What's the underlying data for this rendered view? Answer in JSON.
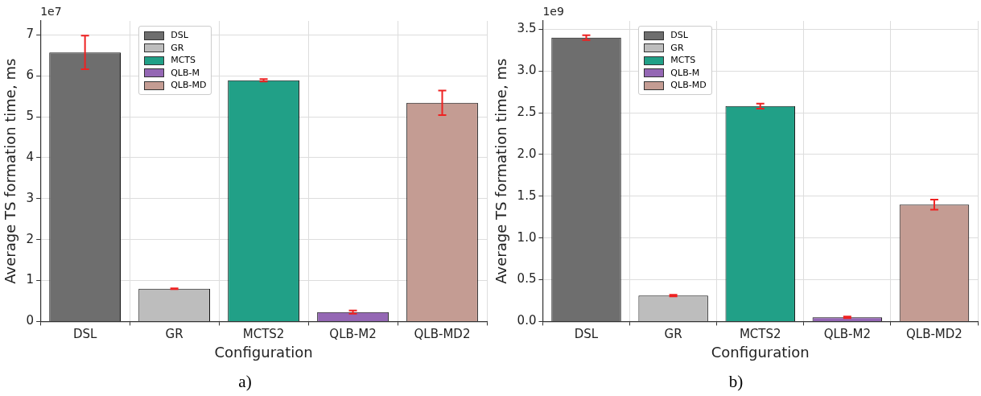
{
  "chart_data": [
    {
      "type": "bar",
      "xlabel": "Configuration",
      "ylabel": "Average TS formation time, ms",
      "annotations": [
        "1e7",
        "a)"
      ],
      "categories": [
        "DSL",
        "GR",
        "MCTS2",
        "QLB-M2",
        "QLB-MD2"
      ],
      "series": [
        {
          "name": "DSL",
          "color": "#6e6e6e",
          "values": [
            6.57,
            null,
            null,
            null,
            null
          ],
          "errors": [
            0.41,
            null,
            null,
            null,
            null
          ]
        },
        {
          "name": "GR",
          "color": "#bdbdbd",
          "values": [
            null,
            0.8,
            null,
            null,
            null
          ],
          "errors": [
            null,
            0.01,
            null,
            null,
            null
          ]
        },
        {
          "name": "MCTS",
          "color": "#21a087",
          "values": [
            null,
            null,
            5.89,
            null,
            null
          ],
          "errors": [
            null,
            null,
            0.03,
            null,
            null
          ]
        },
        {
          "name": "QLB-M",
          "color": "#9467b4",
          "values": [
            null,
            null,
            null,
            0.23,
            null
          ],
          "errors": [
            null,
            null,
            null,
            0.04,
            null
          ]
        },
        {
          "name": "QLB-MD",
          "color": "#c49c93",
          "values": [
            null,
            null,
            null,
            null,
            5.34
          ],
          "errors": [
            null,
            null,
            null,
            null,
            0.3
          ]
        }
      ],
      "ylim": [
        0,
        7.34
      ],
      "yticks": [
        0,
        1,
        2,
        3,
        4,
        5,
        6,
        7
      ],
      "grid": true,
      "legend": "top left"
    },
    {
      "type": "bar",
      "xlabel": "Configuration",
      "ylabel": "Average TS formation time, ms",
      "annotations": [
        "1e9",
        "b)"
      ],
      "categories": [
        "DSL",
        "GR",
        "MCTS2",
        "QLB-M2",
        "QLB-MD2"
      ],
      "series": [
        {
          "name": "DSL",
          "color": "#6e6e6e",
          "values": [
            3.4,
            null,
            null,
            null,
            null
          ],
          "errors": [
            0.03,
            null,
            null,
            null,
            null
          ]
        },
        {
          "name": "GR",
          "color": "#bdbdbd",
          "values": [
            null,
            0.31,
            null,
            null,
            null
          ],
          "errors": [
            null,
            0.01,
            null,
            null,
            null
          ]
        },
        {
          "name": "MCTS",
          "color": "#21a087",
          "values": [
            null,
            null,
            2.58,
            null,
            null
          ],
          "errors": [
            null,
            null,
            0.03,
            null,
            null
          ]
        },
        {
          "name": "QLB-M",
          "color": "#9467b4",
          "values": [
            null,
            null,
            null,
            0.05,
            null
          ],
          "errors": [
            null,
            null,
            null,
            0.01,
            null
          ]
        },
        {
          "name": "QLB-MD",
          "color": "#c49c93",
          "values": [
            null,
            null,
            null,
            null,
            1.4
          ],
          "errors": [
            null,
            null,
            null,
            null,
            0.06
          ]
        }
      ],
      "ylim": [
        0,
        3.6
      ],
      "yticks": [
        {
          "value": 0,
          "label": "0.0"
        },
        0.5,
        {
          "value": 1,
          "label": "1.0"
        },
        1.5,
        {
          "value": 2,
          "label": "2.0"
        },
        2.5,
        {
          "value": 3,
          "label": "3.0"
        },
        3.5
      ],
      "grid": true,
      "legend": "top left"
    }
  ]
}
